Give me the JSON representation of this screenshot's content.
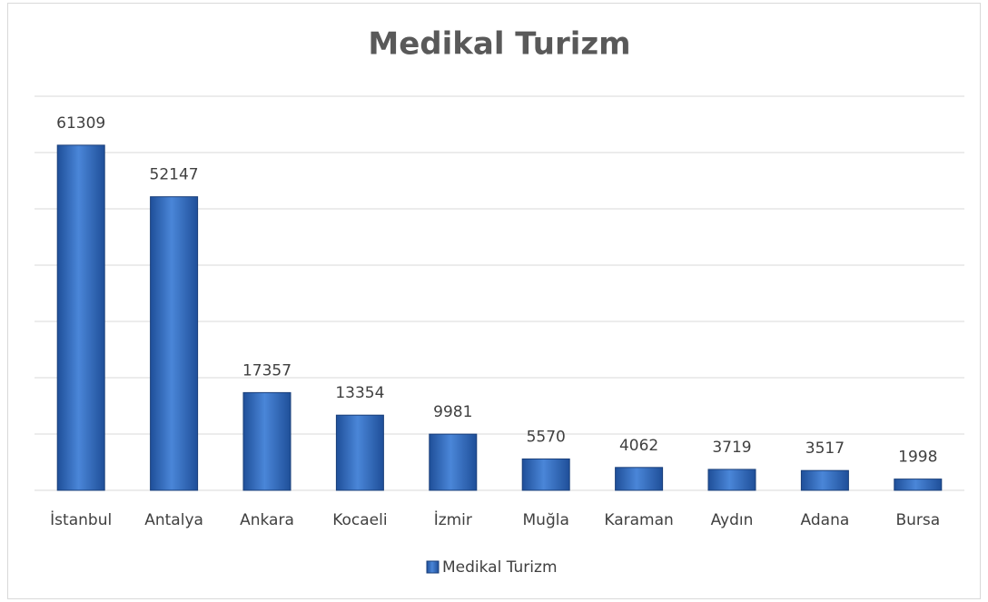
{
  "chart_data": {
    "type": "bar",
    "title": "Medikal Turizm",
    "categories": [
      "İstanbul",
      "Antalya",
      "Ankara",
      "Kocaeli",
      "İzmir",
      "Muğla",
      "Karaman",
      "Aydın",
      "Adana",
      "Bursa"
    ],
    "series": [
      {
        "name": "Medikal Turizm",
        "color": "#2e6bc0",
        "values": [
          61309,
          52147,
          17357,
          13354,
          9981,
          5570,
          4062,
          3719,
          3517,
          1998
        ]
      }
    ],
    "ylim": [
      0,
      70000
    ],
    "yticks": [
      0,
      10000,
      20000,
      30000,
      40000,
      50000,
      60000,
      70000
    ],
    "grid": true,
    "legend": "bottom"
  }
}
